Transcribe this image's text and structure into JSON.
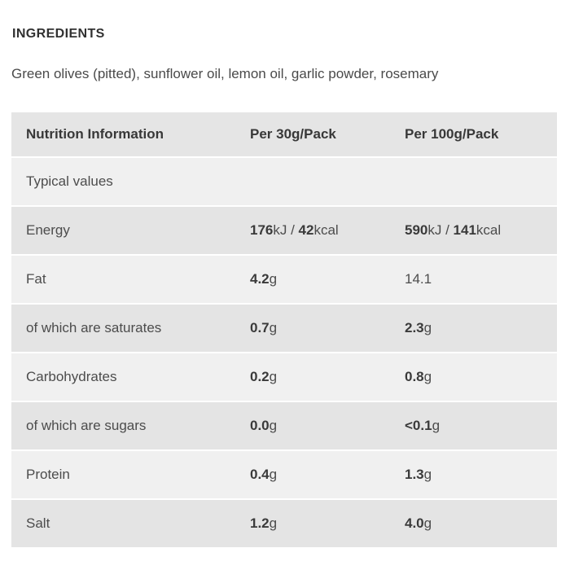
{
  "page": {
    "background": "#ffffff"
  },
  "ingredients_section": {
    "heading": "INGREDIENTS",
    "text": "Green olives (pitted), sunflower oil, lemon oil, garlic powder, rosemary"
  },
  "nutrition_table": {
    "columns": [
      "Nutrition Information",
      "Per 30g/Pack",
      "Per 100g/Pack"
    ],
    "rows": [
      {
        "label": "Typical values",
        "per_30g": [],
        "per_100g": []
      },
      {
        "label": "Energy",
        "per_30g": [
          {
            "text": "176",
            "bold": true
          },
          {
            "text": "kJ / ",
            "bold": false
          },
          {
            "text": "42",
            "bold": true
          },
          {
            "text": "kcal",
            "bold": false
          }
        ],
        "per_100g": [
          {
            "text": "590",
            "bold": true
          },
          {
            "text": "kJ / ",
            "bold": false
          },
          {
            "text": "141",
            "bold": true
          },
          {
            "text": "kcal",
            "bold": false
          }
        ]
      },
      {
        "label": "Fat",
        "per_30g": [
          {
            "text": "4.2",
            "bold": true
          },
          {
            "text": "g",
            "bold": false
          }
        ],
        "per_100g": [
          {
            "text": "14.1",
            "bold": false
          }
        ]
      },
      {
        "label": "of which are saturates",
        "per_30g": [
          {
            "text": "0.7",
            "bold": true
          },
          {
            "text": "g",
            "bold": false
          }
        ],
        "per_100g": [
          {
            "text": "2.3",
            "bold": true
          },
          {
            "text": "g",
            "bold": false
          }
        ]
      },
      {
        "label": "Carbohydrates",
        "per_30g": [
          {
            "text": "0.2",
            "bold": true
          },
          {
            "text": "g",
            "bold": false
          }
        ],
        "per_100g": [
          {
            "text": "0.8",
            "bold": true
          },
          {
            "text": "g",
            "bold": false
          }
        ]
      },
      {
        "label": "of which are sugars",
        "per_30g": [
          {
            "text": "0.0",
            "bold": true
          },
          {
            "text": "g",
            "bold": false
          }
        ],
        "per_100g": [
          {
            "text": "<0.1",
            "bold": true
          },
          {
            "text": "g",
            "bold": false
          }
        ]
      },
      {
        "label": "Protein",
        "per_30g": [
          {
            "text": "0.4",
            "bold": true
          },
          {
            "text": "g",
            "bold": false
          }
        ],
        "per_100g": [
          {
            "text": "1.3",
            "bold": true
          },
          {
            "text": "g",
            "bold": false
          }
        ]
      },
      {
        "label": "Salt",
        "per_30g": [
          {
            "text": "1.2",
            "bold": true
          },
          {
            "text": "g",
            "bold": false
          }
        ],
        "per_100g": [
          {
            "text": "4.0",
            "bold": true
          },
          {
            "text": "g",
            "bold": false
          }
        ]
      }
    ],
    "colors": {
      "header_bg": "#e5e5e5",
      "row_dark": "#e4e4e4",
      "row_light": "#f0f0f0",
      "header_text": "#383838",
      "label_text": "#4c4c4c",
      "value_number_text": "#3a3a3a"
    }
  }
}
